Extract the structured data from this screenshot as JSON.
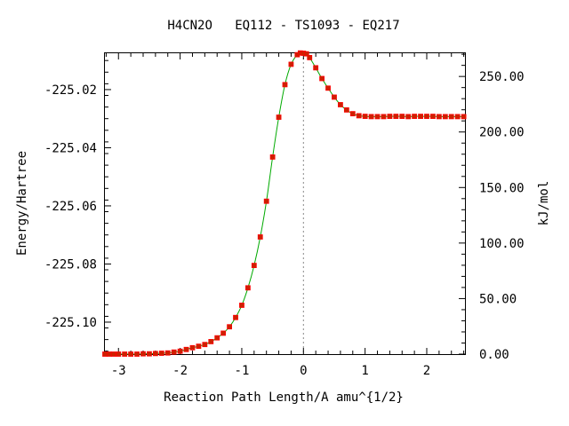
{
  "chart_data": {
    "type": "line",
    "title": "H4CN2O   EQ112 - TS1093 - EQ217",
    "xlabel": "Reaction Path Length/A amu^{1/2}",
    "ylabel_left": "Energy/Hartree",
    "ylabel_right": "kJ/mol",
    "xlim": [
      -3.22,
      2.62
    ],
    "ylim_left": [
      -225.111,
      -225.0075
    ],
    "ylim_right": [
      0,
      270.9
    ],
    "x_ticks": [
      -3,
      -2,
      -1,
      0,
      1,
      2
    ],
    "x_tick_labels": [
      "-3",
      "-2",
      "-1",
      "0",
      "1",
      "2"
    ],
    "y_left_ticks": [
      -225.02,
      -225.04,
      -225.06,
      -225.08,
      -225.1
    ],
    "y_left_tick_labels": [
      "-225.02",
      "-225.04",
      "-225.06",
      "-225.08",
      "-225.10"
    ],
    "y_right_ticks": [
      0,
      50,
      100,
      150,
      200,
      250
    ],
    "y_right_tick_labels": [
      "0.00",
      "50.00",
      "100.00",
      "150.00",
      "200.00",
      "250.00"
    ],
    "ts_x": 0,
    "colors": {
      "line": "#00aa00",
      "marker_fill": "#cc2200",
      "marker_edge": "#ff0000",
      "ts_line": "#888888"
    },
    "series": [
      {
        "x": [
          -3.22,
          -3.15,
          -3.08,
          -3.0,
          -2.9,
          -2.8,
          -2.7,
          -2.6,
          -2.5,
          -2.4,
          -2.3,
          -2.2,
          -2.1,
          -2.0,
          -1.9,
          -1.8,
          -1.7,
          -1.6,
          -1.5,
          -1.4,
          -1.3,
          -1.2,
          -1.1,
          -1.0,
          -0.9,
          -0.8,
          -0.7,
          -0.6,
          -0.5,
          -0.4,
          -0.3,
          -0.2,
          -0.1,
          -0.05,
          0.0,
          0.05,
          0.1,
          0.2,
          0.3,
          0.4,
          0.5,
          0.6,
          0.7,
          0.8,
          0.9,
          1.0,
          1.1,
          1.2,
          1.3,
          1.4,
          1.5,
          1.6,
          1.7,
          1.8,
          1.9,
          2.0,
          2.1,
          2.2,
          2.3,
          2.4,
          2.5,
          2.6
        ],
        "y": [
          -225.111,
          -225.111,
          -225.111,
          -225.111,
          -225.111,
          -225.111,
          -225.111,
          -225.1109,
          -225.1109,
          -225.1108,
          -225.1107,
          -225.1106,
          -225.1103,
          -225.11,
          -225.1094,
          -225.1088,
          -225.1083,
          -225.1077,
          -225.1067,
          -225.1054,
          -225.1038,
          -225.1016,
          -225.0984,
          -225.0942,
          -225.0882,
          -225.0805,
          -225.0707,
          -225.0584,
          -225.0432,
          -225.0295,
          -225.0183,
          -225.0113,
          -225.008,
          -225.0074,
          -225.0075,
          -225.0077,
          -225.009,
          -225.0125,
          -225.0162,
          -225.0195,
          -225.0226,
          -225.0252,
          -225.027,
          -225.0283,
          -225.029,
          -225.0292,
          -225.0293,
          -225.0293,
          -225.0293,
          -225.0292,
          -225.0292,
          -225.0292,
          -225.0293,
          -225.0292,
          -225.0292,
          -225.0292,
          -225.0292,
          -225.0293,
          -225.0293,
          -225.0293,
          -225.0293,
          -225.0293
        ]
      }
    ]
  }
}
